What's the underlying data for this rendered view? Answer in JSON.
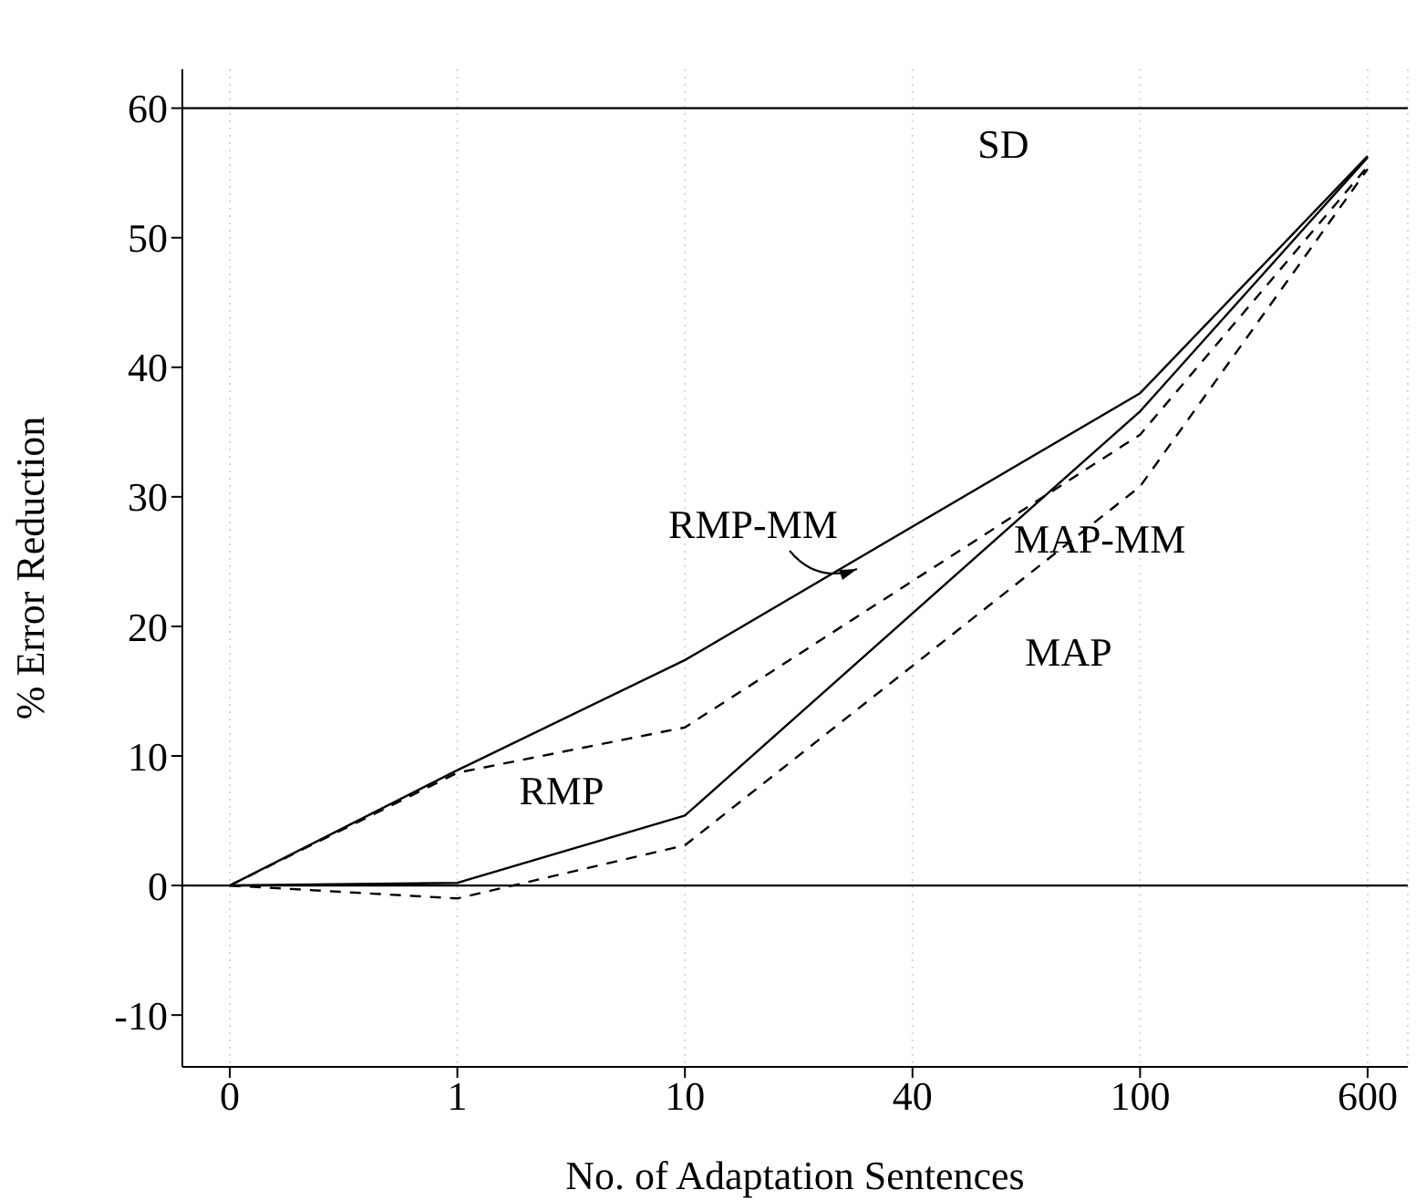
{
  "chart_data": {
    "type": "line",
    "xlabel": "No. of Adaptation Sentences",
    "ylabel": "% Error Reduction",
    "categories": [
      "0",
      "1",
      "10",
      "40",
      "100",
      "600"
    ],
    "series": [
      {
        "name": "RMP-MM",
        "color": "#000000",
        "line_style": "solid",
        "values": [
          0,
          8.9,
          17.4,
          null,
          38.0,
          56.3
        ]
      },
      {
        "name": "MAP-MM",
        "color": "#000000",
        "line_style": "solid",
        "values": [
          0,
          0.2,
          5.4,
          null,
          36.6,
          56.2
        ]
      },
      {
        "name": "RMP",
        "color": "#000000",
        "line_style": "dashed",
        "values": [
          0,
          8.7,
          12.2,
          null,
          34.8,
          55.5
        ]
      },
      {
        "name": "MAP",
        "color": "#000000",
        "line_style": "dashed",
        "values": [
          0,
          -1.0,
          3.1,
          null,
          30.8,
          55.3
        ]
      }
    ],
    "ylim": [
      -14,
      63
    ],
    "yticks": [
      -10,
      0,
      10,
      20,
      30,
      40,
      50,
      60
    ],
    "ref_lines": [
      {
        "axis": "y",
        "value": 60,
        "label": "SD",
        "color": "#000000"
      },
      {
        "axis": "y",
        "value": 0,
        "color": "#000000"
      }
    ],
    "grid": "x",
    "marker": "none"
  }
}
